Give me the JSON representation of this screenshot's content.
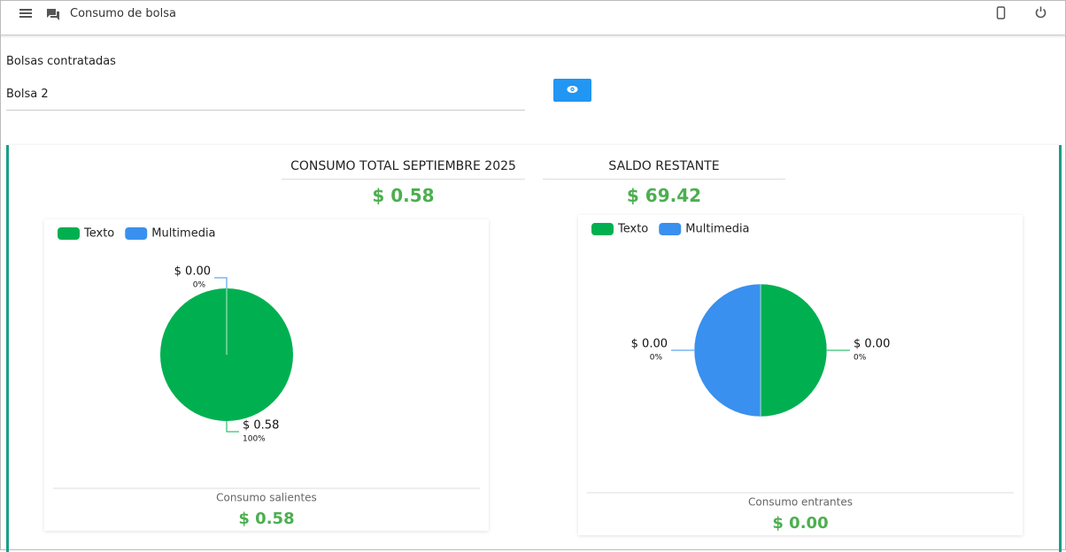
{
  "header": {
    "title": "Consumo de bolsa"
  },
  "form": {
    "label": "Bolsas contratadas",
    "selected": "Bolsa 2"
  },
  "summary": [
    {
      "label": "CONSUMO TOTAL SEPTIEMBRE 2025",
      "value": "$ 0.58"
    },
    {
      "label": "SALDO RESTANTE",
      "value": "$ 69.42"
    }
  ],
  "chart_data": [
    {
      "type": "pie",
      "categories": [
        "Texto",
        "Multimedia"
      ],
      "colors": [
        "#00b050",
        "#3990ee"
      ],
      "values": [
        0.58,
        0
      ],
      "value_labels": [
        "$ 0.58",
        "$ 0.00"
      ],
      "percents": [
        100,
        0
      ],
      "percent_labels": [
        "100%",
        "0%"
      ],
      "caption": "Consumo salientes",
      "total": "$ 0.58"
    },
    {
      "type": "pie",
      "categories": [
        "Texto",
        "Multimedia"
      ],
      "colors": [
        "#00b050",
        "#3990ee"
      ],
      "values": [
        0,
        0
      ],
      "value_labels": [
        "$ 0.00",
        "$ 0.00"
      ],
      "percents": [
        0,
        0
      ],
      "percent_labels": [
        "0%",
        "0%"
      ],
      "caption": "Consumo entrantes",
      "total": "$ 0.00"
    }
  ]
}
